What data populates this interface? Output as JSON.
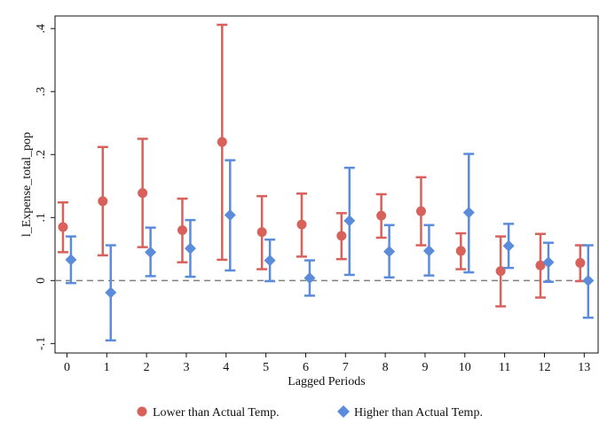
{
  "chart_data": {
    "type": "scatter",
    "title": "",
    "xlabel": "Lagged Periods",
    "ylabel": "l_Expense_total_pop",
    "x": [
      0,
      1,
      2,
      3,
      4,
      5,
      6,
      7,
      8,
      9,
      10,
      11,
      12,
      13
    ],
    "xticks": [
      "0",
      "1",
      "2",
      "3",
      "4",
      "5",
      "6",
      "7",
      "8",
      "9",
      "10",
      "11",
      "12",
      "13"
    ],
    "yticks": [
      {
        "value": -0.1,
        "label": "-.1"
      },
      {
        "value": 0,
        "label": "0"
      },
      {
        "value": 0.1,
        "label": ".1"
      },
      {
        "value": 0.2,
        "label": ".2"
      },
      {
        "value": 0.3,
        "label": ".3"
      },
      {
        "value": 0.4,
        "label": ".4"
      }
    ],
    "xlim": [
      -0.3,
      13.35
    ],
    "ylim": [
      -0.115,
      0.42
    ],
    "reference_line": 0,
    "grid": false,
    "legend_position": "bottom",
    "series": [
      {
        "name": "Lower than Actual Temp.",
        "marker": "circle",
        "color": "#D9615B",
        "offset": -0.1,
        "values": [
          0.085,
          0.126,
          0.139,
          0.08,
          0.22,
          0.077,
          0.089,
          0.071,
          0.103,
          0.11,
          0.047,
          0.015,
          0.024,
          0.028
        ],
        "ci_low": [
          0.045,
          0.04,
          0.053,
          0.029,
          0.033,
          0.018,
          0.038,
          0.034,
          0.068,
          0.056,
          0.018,
          -0.041,
          -0.027,
          -0.001
        ],
        "ci_high": [
          0.124,
          0.212,
          0.225,
          0.13,
          0.406,
          0.134,
          0.138,
          0.107,
          0.137,
          0.164,
          0.075,
          0.07,
          0.074,
          0.056
        ]
      },
      {
        "name": "Higher than Actual Temp.",
        "marker": "diamond",
        "color": "#5B8CDB",
        "offset": 0.1,
        "values": [
          0.033,
          -0.019,
          0.045,
          0.051,
          0.104,
          0.032,
          0.004,
          0.095,
          0.046,
          0.047,
          0.108,
          0.055,
          0.029,
          0.0
        ],
        "ci_low": [
          -0.004,
          -0.095,
          0.007,
          0.006,
          0.016,
          -0.001,
          -0.024,
          0.009,
          0.005,
          0.008,
          0.013,
          0.02,
          -0.002,
          -0.059
        ],
        "ci_high": [
          0.07,
          0.056,
          0.084,
          0.096,
          0.191,
          0.065,
          0.032,
          0.179,
          0.088,
          0.088,
          0.201,
          0.09,
          0.06,
          0.056
        ]
      }
    ]
  }
}
